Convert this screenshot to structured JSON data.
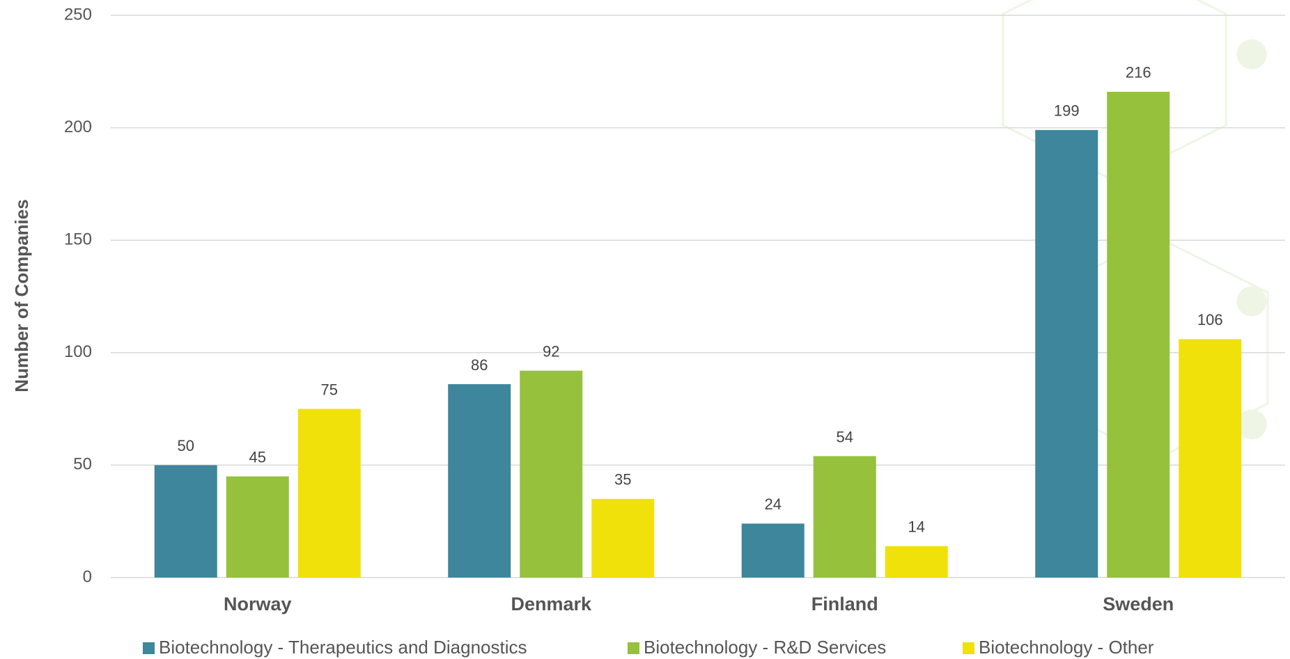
{
  "chart_data": {
    "type": "bar",
    "y_label": "Number of Companies",
    "categories": [
      "Norway",
      "Denmark",
      "Finland",
      "Sweden"
    ],
    "series": [
      {
        "name": "Biotechnology - Therapeutics and Diagnostics",
        "color": "#3d869c",
        "values": [
          50,
          86,
          24,
          199
        ]
      },
      {
        "name": "Biotechnology - R&D Services",
        "color": "#95c13d",
        "values": [
          45,
          92,
          54,
          216
        ]
      },
      {
        "name": "Biotechnology - Other",
        "color": "#f0e10a",
        "values": [
          75,
          35,
          14,
          106
        ]
      }
    ],
    "ylim": [
      0,
      250
    ],
    "yticks": [
      0,
      50,
      100,
      150,
      200,
      250
    ],
    "grid": true,
    "legend": "bottom"
  }
}
